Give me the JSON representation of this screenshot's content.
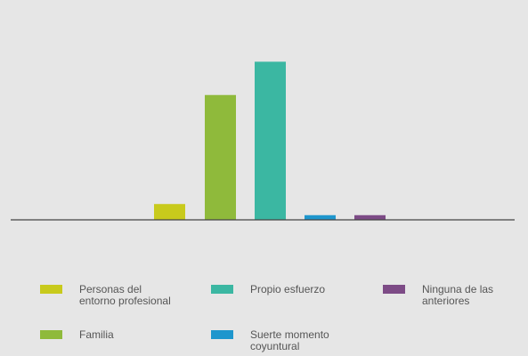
{
  "chart_data": {
    "type": "bar",
    "categories": [
      "Personas del entorno profesional",
      "Familia",
      "Propio esfuerzo",
      "Suerte momento coyuntural",
      "Ninguna de las anteriores"
    ],
    "values": [
      9.5,
      75,
      95,
      2.8,
      2.8
    ],
    "colors": [
      "#c8ca1c",
      "#8fba3b",
      "#3bb7a2",
      "#1e96cd",
      "#7d4b86"
    ],
    "ylim": [
      0,
      100
    ],
    "grid": false,
    "legend": {
      "placement": "bottom",
      "items": [
        {
          "lines": [
            "Personas del",
            "entorno profesional"
          ],
          "color": "#c8ca1c"
        },
        {
          "lines": [
            "Propio esfuerzo"
          ],
          "color": "#3bb7a2"
        },
        {
          "lines": [
            "Ninguna de las",
            "anteriores"
          ],
          "color": "#7d4b86"
        },
        {
          "lines": [
            "Familia"
          ],
          "color": "#8fba3b"
        },
        {
          "lines": [
            "Suerte momento",
            "coyuntural"
          ],
          "color": "#1e96cd"
        }
      ]
    },
    "baseline_color": "#444444"
  }
}
